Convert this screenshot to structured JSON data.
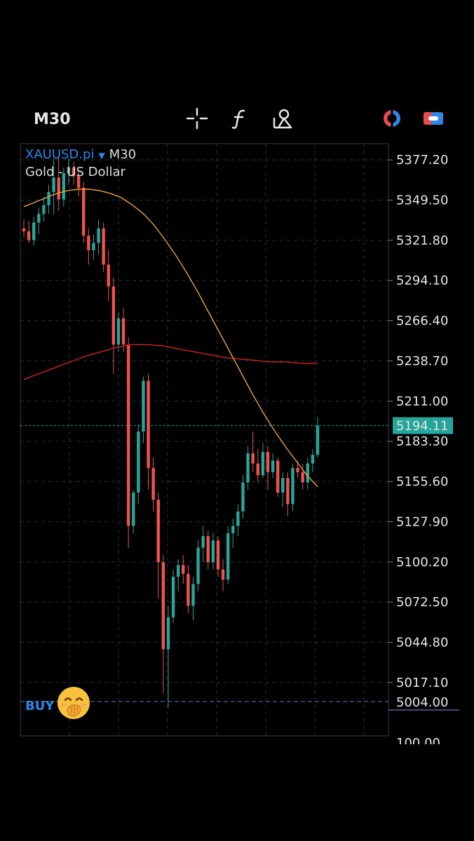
{
  "toolbar": {
    "timeframe": "M30",
    "tools": [
      "crosshair-icon",
      "function-icon",
      "objects-icon",
      "trade-icon",
      "settings-toggle-icon"
    ]
  },
  "symbol": {
    "ticker": "XAUUSD.pi",
    "timeframe": "M30",
    "description": "Gold - US Dollar"
  },
  "buy_label": "BUY",
  "colors": {
    "background": "#000000",
    "bull": "#26a69a",
    "bear": "#ef5350",
    "ma_fast": "#e8a23a",
    "ma_slow": "#d02020",
    "grid": "#2a2e45",
    "current_price": "#26a69a",
    "buy_line": "#5a5aa0"
  },
  "chart_data": {
    "type": "candlestick",
    "symbol": "XAUUSD.pi",
    "ylim": [
      4990,
      5385
    ],
    "y_ticks": [
      "5377.20",
      "5349.50",
      "5321.80",
      "5294.10",
      "5266.40",
      "5238.70",
      "5211.00",
      "5183.30",
      "5155.60",
      "5127.90",
      "5100.20",
      "5072.50",
      "5044.80",
      "5017.10"
    ],
    "current_price": 5194.11,
    "current_price_label": "5194.11",
    "buy_price": 5004.0,
    "buy_price_label": "5004.00",
    "bottom_axis_partial": "100.00",
    "candles": [
      [
        5330,
        5336,
        5324,
        5328
      ],
      [
        5328,
        5335,
        5320,
        5322
      ],
      [
        5322,
        5338,
        5318,
        5334
      ],
      [
        5334,
        5344,
        5326,
        5340
      ],
      [
        5340,
        5352,
        5335,
        5346
      ],
      [
        5346,
        5360,
        5340,
        5355
      ],
      [
        5355,
        5378,
        5340,
        5365
      ],
      [
        5365,
        5380,
        5342,
        5350
      ],
      [
        5350,
        5372,
        5345,
        5368
      ],
      [
        5368,
        5378,
        5360,
        5372
      ],
      [
        5372,
        5376,
        5360,
        5366
      ],
      [
        5366,
        5370,
        5352,
        5358
      ],
      [
        5358,
        5362,
        5320,
        5325
      ],
      [
        5325,
        5330,
        5305,
        5315
      ],
      [
        5315,
        5326,
        5308,
        5320
      ],
      [
        5320,
        5336,
        5312,
        5330
      ],
      [
        5330,
        5334,
        5300,
        5305
      ],
      [
        5305,
        5315,
        5280,
        5290
      ],
      [
        5290,
        5296,
        5230,
        5250
      ],
      [
        5250,
        5272,
        5245,
        5268
      ],
      [
        5268,
        5275,
        5245,
        5250
      ],
      [
        5250,
        5255,
        5110,
        5125
      ],
      [
        5125,
        5150,
        5120,
        5148
      ],
      [
        5148,
        5195,
        5140,
        5190
      ],
      [
        5190,
        5228,
        5182,
        5225
      ],
      [
        5225,
        5230,
        5150,
        5165
      ],
      [
        5165,
        5172,
        5135,
        5143
      ],
      [
        5143,
        5148,
        5075,
        5100
      ],
      [
        5100,
        5105,
        5010,
        5040
      ],
      [
        5040,
        5070,
        5000,
        5062
      ],
      [
        5062,
        5095,
        5058,
        5090
      ],
      [
        5090,
        5102,
        5080,
        5098
      ],
      [
        5098,
        5105,
        5085,
        5092
      ],
      [
        5092,
        5098,
        5065,
        5070
      ],
      [
        5070,
        5090,
        5060,
        5085
      ],
      [
        5085,
        5115,
        5080,
        5110
      ],
      [
        5110,
        5125,
        5100,
        5118
      ],
      [
        5118,
        5122,
        5095,
        5100
      ],
      [
        5100,
        5120,
        5095,
        5115
      ],
      [
        5115,
        5118,
        5090,
        5095
      ],
      [
        5095,
        5102,
        5080,
        5088
      ],
      [
        5088,
        5125,
        5085,
        5120
      ],
      [
        5120,
        5130,
        5110,
        5125
      ],
      [
        5125,
        5140,
        5118,
        5135
      ],
      [
        5135,
        5160,
        5130,
        5155
      ],
      [
        5155,
        5180,
        5150,
        5175
      ],
      [
        5175,
        5190,
        5162,
        5168
      ],
      [
        5168,
        5178,
        5155,
        5160
      ],
      [
        5160,
        5182,
        5158,
        5176
      ],
      [
        5176,
        5180,
        5150,
        5162
      ],
      [
        5162,
        5175,
        5158,
        5170
      ],
      [
        5170,
        5172,
        5145,
        5148
      ],
      [
        5148,
        5162,
        5138,
        5158
      ],
      [
        5158,
        5162,
        5132,
        5140
      ],
      [
        5140,
        5168,
        5135,
        5165
      ],
      [
        5165,
        5170,
        5158,
        5162
      ],
      [
        5162,
        5168,
        5150,
        5155
      ],
      [
        5155,
        5172,
        5150,
        5168
      ],
      [
        5168,
        5178,
        5162,
        5174
      ],
      [
        5174,
        5200,
        5172,
        5194
      ]
    ],
    "ma_fast": [
      5345,
      5348,
      5351,
      5354,
      5356,
      5357,
      5357,
      5356,
      5354,
      5351,
      5346,
      5340,
      5332,
      5322,
      5311,
      5299,
      5286,
      5272,
      5258,
      5244,
      5230,
      5216,
      5203,
      5191,
      5180,
      5170,
      5160,
      5152
    ],
    "ma_slow": [
      5226,
      5230,
      5234,
      5238,
      5242,
      5245,
      5248,
      5250,
      5250,
      5249,
      5247,
      5245,
      5243,
      5241,
      5240,
      5239,
      5238,
      5238,
      5237,
      5237
    ]
  }
}
